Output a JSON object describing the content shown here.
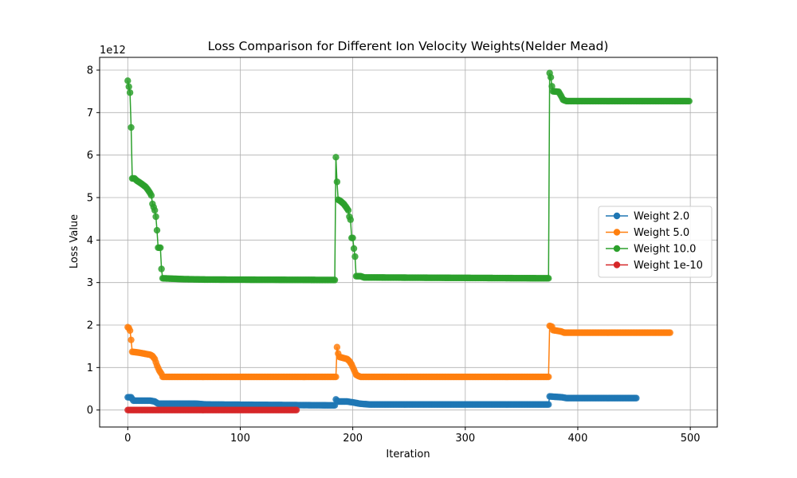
{
  "chart_data": {
    "type": "line",
    "title": "Loss Comparison for Different Ion Velocity Weights(Nelder Mead)",
    "xlabel": "Iteration",
    "ylabel": "Loss Value",
    "y_offset_label": "1e12",
    "xlim": [
      -25,
      524
    ],
    "ylim": [
      -0.4,
      8.3
    ],
    "x_ticks": [
      0,
      100,
      200,
      300,
      400,
      500
    ],
    "y_ticks": [
      0,
      1,
      2,
      3,
      4,
      5,
      6,
      7,
      8
    ],
    "grid": true,
    "legend_position": "center-right",
    "series": [
      {
        "name": "Weight 2.0",
        "color": "#1f77b4",
        "x_max": 452,
        "keypoints": [
          [
            0,
            0.3
          ],
          [
            3,
            0.3
          ],
          [
            5,
            0.22
          ],
          [
            20,
            0.22
          ],
          [
            24,
            0.2
          ],
          [
            27,
            0.15
          ],
          [
            60,
            0.15
          ],
          [
            70,
            0.13
          ],
          [
            180,
            0.11
          ],
          [
            184,
            0.11
          ],
          [
            185,
            0.25
          ],
          [
            187,
            0.2
          ],
          [
            195,
            0.2
          ],
          [
            200,
            0.18
          ],
          [
            206,
            0.15
          ],
          [
            215,
            0.13
          ],
          [
            370,
            0.13
          ],
          [
            374,
            0.13
          ],
          [
            375,
            0.32
          ],
          [
            380,
            0.31
          ],
          [
            386,
            0.3
          ],
          [
            390,
            0.28
          ],
          [
            452,
            0.28
          ]
        ]
      },
      {
        "name": "Weight 5.0",
        "color": "#ff7f0e",
        "x_max": 482,
        "keypoints": [
          [
            0,
            1.95
          ],
          [
            1,
            1.93
          ],
          [
            2,
            1.87
          ],
          [
            3,
            1.65
          ],
          [
            4,
            1.37
          ],
          [
            10,
            1.35
          ],
          [
            20,
            1.3
          ],
          [
            22,
            1.27
          ],
          [
            24,
            1.2
          ],
          [
            26,
            1.05
          ],
          [
            28,
            0.93
          ],
          [
            30,
            0.85
          ],
          [
            31,
            0.78
          ],
          [
            185,
            0.78
          ],
          [
            186,
            1.48
          ],
          [
            187,
            1.33
          ],
          [
            188,
            1.25
          ],
          [
            195,
            1.2
          ],
          [
            197,
            1.15
          ],
          [
            199,
            1.07
          ],
          [
            201,
            0.95
          ],
          [
            203,
            0.83
          ],
          [
            205,
            0.8
          ],
          [
            207,
            0.78
          ],
          [
            374,
            0.78
          ],
          [
            375,
            1.98
          ],
          [
            377,
            1.96
          ],
          [
            378,
            1.88
          ],
          [
            385,
            1.85
          ],
          [
            388,
            1.82
          ],
          [
            482,
            1.82
          ]
        ]
      },
      {
        "name": "Weight 10.0",
        "color": "#2ca02c",
        "x_max": 499,
        "keypoints": [
          [
            0,
            7.75
          ],
          [
            2,
            7.47
          ],
          [
            3,
            6.65
          ],
          [
            4,
            5.45
          ],
          [
            6,
            5.45
          ],
          [
            8,
            5.4
          ],
          [
            12,
            5.33
          ],
          [
            16,
            5.25
          ],
          [
            18,
            5.18
          ],
          [
            20,
            5.1
          ],
          [
            21,
            5.05
          ],
          [
            22,
            4.85
          ],
          [
            24,
            4.7
          ],
          [
            25,
            4.55
          ],
          [
            26,
            4.23
          ],
          [
            27,
            3.82
          ],
          [
            29,
            3.82
          ],
          [
            30,
            3.32
          ],
          [
            31,
            3.1
          ],
          [
            50,
            3.08
          ],
          [
            70,
            3.07
          ],
          [
            184,
            3.06
          ],
          [
            185,
            5.95
          ],
          [
            186,
            5.37
          ],
          [
            187,
            4.95
          ],
          [
            189,
            4.92
          ],
          [
            192,
            4.85
          ],
          [
            194,
            4.78
          ],
          [
            196,
            4.7
          ],
          [
            197,
            4.55
          ],
          [
            198,
            4.48
          ],
          [
            199,
            4.05
          ],
          [
            200,
            4.05
          ],
          [
            201,
            3.8
          ],
          [
            202,
            3.61
          ],
          [
            203,
            3.15
          ],
          [
            207,
            3.15
          ],
          [
            210,
            3.12
          ],
          [
            373,
            3.1
          ],
          [
            374,
            3.1
          ],
          [
            375,
            7.93
          ],
          [
            376,
            7.83
          ],
          [
            377,
            7.62
          ],
          [
            378,
            7.5
          ],
          [
            383,
            7.49
          ],
          [
            385,
            7.4
          ],
          [
            387,
            7.3
          ],
          [
            390,
            7.27
          ],
          [
            499,
            7.27
          ]
        ]
      },
      {
        "name": "Weight 1e-10",
        "color": "#d62728",
        "x_max": 150,
        "keypoints": [
          [
            0,
            0.0
          ],
          [
            150,
            0.0
          ]
        ]
      }
    ]
  }
}
